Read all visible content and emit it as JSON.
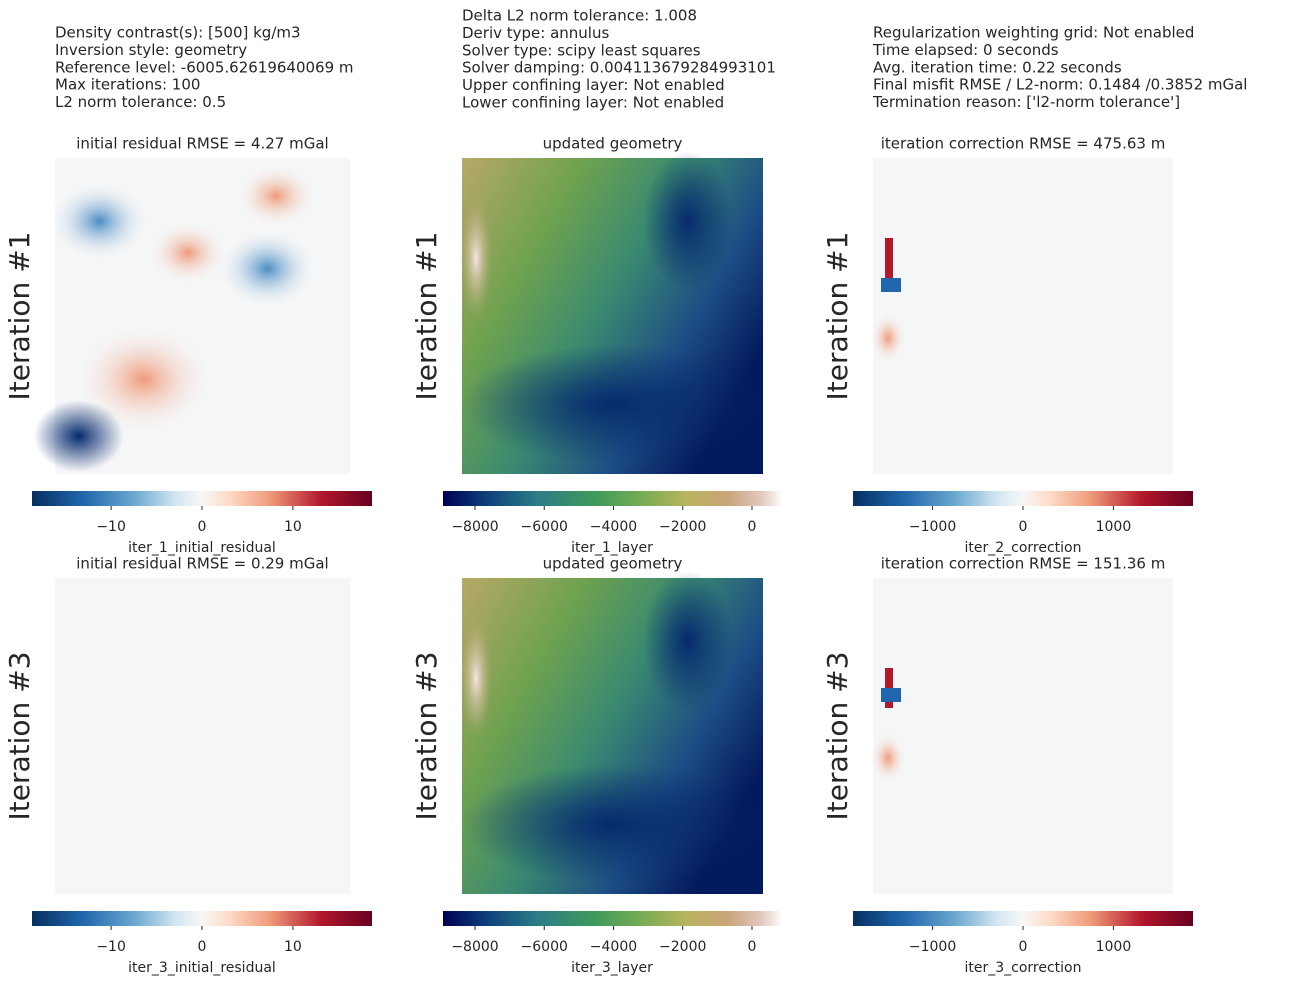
{
  "header": {
    "columns": [
      [
        "Density contrast(s): [500] kg/m3",
        "Inversion style: geometry",
        "Reference level: -6005.62619640069 m",
        "Max iterations: 100",
        "L2 norm tolerance: 0.5"
      ],
      [
        "Delta L2 norm tolerance: 1.008",
        "Deriv type: annulus",
        "Solver type: scipy least squares",
        "Solver damping: 0.004113679284993101",
        "Upper confining layer: Not enabled",
        "Lower confining layer: Not enabled"
      ],
      [
        "Regularization weighting grid: Not enabled",
        "Time elapsed: 0 seconds",
        "Avg. iteration time: 0.22 seconds",
        "Final misfit RMSE / L2-norm: 0.1484 /0.3852 mGal",
        "Termination reason: ['l2-norm tolerance']"
      ]
    ]
  },
  "chart_data": [
    {
      "type": "heatmap",
      "title": "initial residual RMSE = 4.27 mGal",
      "ylabel": "Iteration #1",
      "colorbar_label": "iter_1_initial_residual",
      "colormap": "RdBu_r",
      "clim": [
        -18.7,
        18.7
      ],
      "cticks": [
        {
          "value": -10,
          "label": "−10"
        },
        0,
        10
      ]
    },
    {
      "type": "heatmap",
      "title": "updated geometry",
      "ylabel": "Iteration #1",
      "colorbar_label": "iter_1_layer",
      "colormap": "gist_earth",
      "clim": [
        -8924,
        838
      ],
      "cticks": [
        {
          "value": -8000,
          "label": "−8000"
        },
        {
          "value": -6000,
          "label": "−6000"
        },
        {
          "value": -4000,
          "label": "−4000"
        },
        {
          "value": -2000,
          "label": "−2000"
        },
        0
      ]
    },
    {
      "type": "heatmap",
      "title": "iteration correction RMSE = 475.63 m",
      "ylabel": "Iteration #1",
      "colorbar_label": "iter_2_correction",
      "colormap": "RdBu_r",
      "clim": [
        -1880,
        1880
      ],
      "cticks": [
        {
          "value": -1000,
          "label": "−1000"
        },
        0,
        1000
      ]
    },
    {
      "type": "heatmap",
      "title": "initial residual RMSE = 0.29 mGal",
      "ylabel": "Iteration #3",
      "colorbar_label": "iter_3_initial_residual",
      "colormap": "RdBu_r",
      "clim": [
        -18.7,
        18.7
      ],
      "cticks": [
        {
          "value": -10,
          "label": "−10"
        },
        0,
        10
      ]
    },
    {
      "type": "heatmap",
      "title": "updated geometry",
      "ylabel": "Iteration #3",
      "colorbar_label": "iter_3_layer",
      "colormap": "gist_earth",
      "clim": [
        -8924,
        838
      ],
      "cticks": [
        {
          "value": -8000,
          "label": "−8000"
        },
        {
          "value": -6000,
          "label": "−6000"
        },
        {
          "value": -4000,
          "label": "−4000"
        },
        {
          "value": -2000,
          "label": "−2000"
        },
        0
      ]
    },
    {
      "type": "heatmap",
      "title": "iteration correction RMSE = 151.36 m",
      "ylabel": "Iteration #3",
      "colorbar_label": "iter_3_correction",
      "colormap": "RdBu_r",
      "clim": [
        -1880,
        1880
      ],
      "cticks": [
        {
          "value": -1000,
          "label": "−1000"
        },
        0,
        1000
      ]
    }
  ]
}
